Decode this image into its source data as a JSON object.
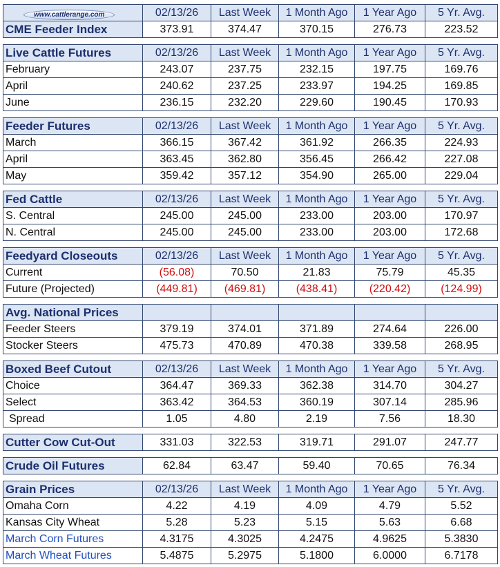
{
  "header": {
    "logo": "www.cattlerange.com",
    "columns": [
      "02/13/26",
      "Last Week",
      "1 Month Ago",
      "1 Year Ago",
      "5 Yr. Avg."
    ]
  },
  "sections": [
    {
      "title": "CME Feeder Index",
      "values": [
        "373.91",
        "374.47",
        "370.15",
        "276.73",
        "223.52"
      ]
    },
    {
      "title": "Live Cattle Futures",
      "columns": [
        "02/13/26",
        "Last Week",
        "1 Month Ago",
        "1 Year Ago",
        "5 Yr. Avg."
      ],
      "rows": [
        {
          "label": "February",
          "values": [
            "243.07",
            "237.75",
            "232.15",
            "197.75",
            "169.76"
          ]
        },
        {
          "label": "April",
          "values": [
            "240.62",
            "237.25",
            "233.97",
            "194.25",
            "169.85"
          ]
        },
        {
          "label": "June",
          "values": [
            "236.15",
            "232.20",
            "229.60",
            "190.45",
            "170.93"
          ]
        }
      ]
    },
    {
      "title": "Feeder Futures",
      "columns": [
        "02/13/26",
        "Last Week",
        "1 Month Ago",
        "1 Year Ago",
        "5 Yr. Avg."
      ],
      "rows": [
        {
          "label": "March",
          "values": [
            "366.15",
            "367.42",
            "361.92",
            "266.35",
            "224.93"
          ]
        },
        {
          "label": "April",
          "values": [
            "363.45",
            "362.80",
            "356.45",
            "266.42",
            "227.08"
          ]
        },
        {
          "label": "May",
          "values": [
            "359.42",
            "357.12",
            "354.90",
            "265.00",
            "229.04"
          ]
        }
      ]
    },
    {
      "title": "Fed Cattle",
      "columns": [
        "02/13/26",
        "Last Week",
        "1 Month Ago",
        "1 Year Ago",
        "5 Yr. Avg."
      ],
      "rows": [
        {
          "label": "S. Central",
          "values": [
            "245.00",
            "245.00",
            "233.00",
            "203.00",
            "170.97"
          ]
        },
        {
          "label": "N. Central",
          "values": [
            "245.00",
            "245.00",
            "233.00",
            "203.00",
            "172.68"
          ]
        }
      ]
    },
    {
      "title": "Feedyard Closeouts",
      "columns": [
        "02/13/26",
        "Last Week",
        "1 Month Ago",
        "1 Year Ago",
        "5 Yr. Avg."
      ],
      "rows": [
        {
          "label": "Current",
          "values": [
            "(56.08)",
            "70.50",
            "21.83",
            "75.79",
            "45.35"
          ]
        },
        {
          "label": "Future (Projected)",
          "values": [
            "(449.81)",
            "(469.81)",
            "(438.41)",
            "(220.42)",
            "(124.99)"
          ]
        }
      ]
    },
    {
      "title": "Avg. National Prices",
      "rows": [
        {
          "label": "Feeder Steers",
          "values": [
            "379.19",
            "374.01",
            "371.89",
            "274.64",
            "226.00"
          ]
        },
        {
          "label": "Stocker Steers",
          "values": [
            "475.73",
            "470.89",
            "470.38",
            "339.58",
            "268.95"
          ]
        }
      ]
    },
    {
      "title": "Boxed Beef Cutout",
      "columns": [
        "02/13/26",
        "Last Week",
        "1 Month Ago",
        "1 Year Ago",
        "5 Yr. Avg."
      ],
      "rows": [
        {
          "label": "Choice",
          "values": [
            "364.47",
            "369.33",
            "362.38",
            "314.70",
            "304.27"
          ]
        },
        {
          "label": "Select",
          "values": [
            "363.42",
            "364.53",
            "360.19",
            "307.14",
            "285.96"
          ]
        },
        {
          "label": "Spread",
          "values": [
            "1.05",
            "4.80",
            "2.19",
            "7.56",
            "18.30"
          ]
        }
      ]
    },
    {
      "title": "Cutter Cow Cut-Out",
      "values": [
        "331.03",
        "322.53",
        "319.71",
        "291.07",
        "247.77"
      ]
    },
    {
      "title": "Crude Oil Futures",
      "values": [
        "62.84",
        "63.47",
        "59.40",
        "70.65",
        "76.34"
      ]
    },
    {
      "title": "Grain Prices",
      "columns": [
        "02/13/26",
        "Last Week",
        "1 Month Ago",
        "1 Year Ago",
        "5 Yr. Avg."
      ],
      "rows": [
        {
          "label": "Omaha Corn",
          "values": [
            "4.22",
            "4.19",
            "4.09",
            "4.79",
            "5.52"
          ]
        },
        {
          "label": "Kansas City Wheat",
          "values": [
            "5.28",
            "5.23",
            "5.15",
            "5.63",
            "6.68"
          ]
        },
        {
          "label": "March Corn Futures",
          "color": "#1f4fbf",
          "values": [
            "4.3175",
            "4.3025",
            "4.2475",
            "4.9625",
            "5.3830"
          ]
        },
        {
          "label": "March Wheat Futures",
          "color": "#1f4fbf",
          "values": [
            "5.4875",
            "5.2975",
            "5.1800",
            "6.0000",
            "6.7178"
          ]
        }
      ]
    }
  ]
}
